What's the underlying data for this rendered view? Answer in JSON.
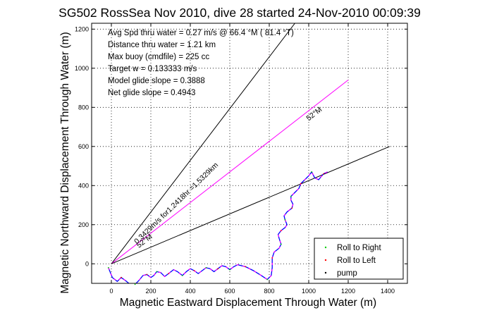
{
  "chart_data": {
    "type": "line",
    "title": "SG502 RossSea Nov 2010, dive 28 started 24-Nov-2010 00:09:39",
    "xlabel": "Magnetic Eastward Displacement Through Water (m)",
    "ylabel": "Magnetic Northward Displacement Through Water (m)",
    "xlim": [
      -100,
      1500
    ],
    "ylim": [
      -100,
      1230
    ],
    "xticks": [
      0,
      200,
      400,
      600,
      800,
      1000,
      1200,
      1400
    ],
    "yticks": [
      0,
      200,
      400,
      600,
      800,
      1000,
      1200
    ],
    "grid": true,
    "annotations": [
      "Avg Spd thru water =  0.27 m/s @  66.4    °M ( 81.4 °T)",
      "Distance thru water =  1.21 km",
      "Max buoy (cmdfile) = 225 cc",
      "Target w = 0.133333 m/s",
      "Model glide slope = 0.3888",
      "Net glide slope = 0.4943"
    ],
    "line_labels": [
      {
        "text": "52°M",
        "x": 1000,
        "y": 730,
        "angle": 38
      },
      {
        "text": "52°M",
        "x": 140,
        "y": 80,
        "angle": 38
      },
      {
        "text": "0.3429m/s for1.2418hr =1.5329km",
        "x": 130,
        "y": 100,
        "angle": 44
      }
    ],
    "reference_lines": [
      {
        "name": "upper",
        "color": "#000000",
        "points": [
          [
            0,
            0
          ],
          [
            930,
            1230
          ]
        ]
      },
      {
        "name": "heading",
        "color": "#ff00ff",
        "points": [
          [
            0,
            0
          ],
          [
            1200,
            940
          ]
        ]
      },
      {
        "name": "course",
        "color": "#000000",
        "points": [
          [
            0,
            0
          ],
          [
            1410,
            600
          ]
        ]
      }
    ],
    "track": [
      [
        -15,
        -20
      ],
      [
        5,
        -70
      ],
      [
        30,
        -90
      ],
      [
        50,
        -70
      ],
      [
        70,
        -85
      ],
      [
        95,
        -105
      ],
      [
        120,
        -105
      ],
      [
        140,
        -85
      ],
      [
        160,
        -60
      ],
      [
        180,
        -55
      ],
      [
        200,
        -70
      ],
      [
        215,
        -60
      ],
      [
        230,
        -40
      ],
      [
        250,
        -45
      ],
      [
        270,
        -65
      ],
      [
        290,
        -50
      ],
      [
        315,
        -30
      ],
      [
        335,
        -40
      ],
      [
        360,
        -60
      ],
      [
        380,
        -40
      ],
      [
        400,
        -25
      ],
      [
        420,
        -35
      ],
      [
        440,
        -50
      ],
      [
        460,
        -35
      ],
      [
        480,
        -20
      ],
      [
        500,
        -25
      ],
      [
        520,
        -40
      ],
      [
        540,
        -25
      ],
      [
        560,
        -10
      ],
      [
        580,
        -15
      ],
      [
        600,
        -30
      ],
      [
        620,
        -15
      ],
      [
        640,
        -5
      ],
      [
        680,
        -15
      ],
      [
        720,
        -35
      ],
      [
        760,
        -60
      ],
      [
        790,
        -80
      ],
      [
        810,
        -60
      ],
      [
        815,
        -20
      ],
      [
        815,
        30
      ],
      [
        825,
        60
      ],
      [
        850,
        80
      ],
      [
        860,
        100
      ],
      [
        850,
        130
      ],
      [
        845,
        150
      ],
      [
        860,
        170
      ],
      [
        880,
        185
      ],
      [
        890,
        200
      ],
      [
        880,
        225
      ],
      [
        875,
        245
      ],
      [
        890,
        265
      ],
      [
        915,
        285
      ],
      [
        920,
        305
      ],
      [
        910,
        325
      ],
      [
        910,
        345
      ],
      [
        930,
        365
      ],
      [
        950,
        385
      ],
      [
        960,
        410
      ],
      [
        980,
        430
      ],
      [
        1000,
        450
      ],
      [
        1015,
        470
      ],
      [
        1030,
        440
      ],
      [
        1050,
        430
      ],
      [
        1075,
        460
      ],
      [
        1095,
        470
      ]
    ],
    "legend": {
      "placement": "bottom-right",
      "entries": [
        {
          "label": "Roll to Right",
          "color": "#00cc00"
        },
        {
          "label": "Roll to Left",
          "color": "#ff0000"
        },
        {
          "label": "pump",
          "color": "#000000"
        }
      ]
    },
    "colors": {
      "track_primary": "#0000ff",
      "track_secondary": "#ff00ff"
    }
  }
}
